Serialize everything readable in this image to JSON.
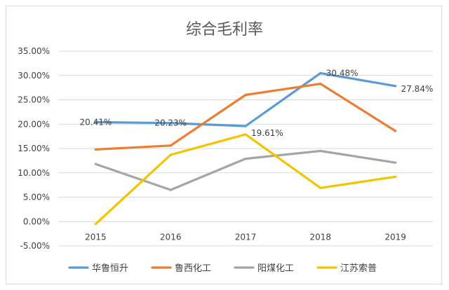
{
  "chart_data": {
    "type": "line",
    "title": "综合毛利率",
    "categories": [
      "2015",
      "2016",
      "2017",
      "2018",
      "2019"
    ],
    "yticks": [
      "35.00%",
      "30.00%",
      "25.00%",
      "20.00%",
      "15.00%",
      "10.00%",
      "5.00%",
      "0.00%",
      "-5.00%"
    ],
    "ylim": [
      -5,
      35
    ],
    "grid": true,
    "legend_position": "bottom",
    "series": [
      {
        "name": "华鲁恒升",
        "color": "#5b9bd5",
        "values": [
          20.41,
          20.23,
          19.61,
          30.48,
          27.84
        ],
        "data_labels": [
          "20.41%",
          "20.23%",
          "19.61%",
          "30.48%",
          "27.84%"
        ]
      },
      {
        "name": "鲁西化工",
        "color": "#ed7d31",
        "values": [
          14.8,
          15.6,
          26.0,
          28.3,
          18.6
        ]
      },
      {
        "name": "阳煤化工",
        "color": "#a5a5a5",
        "values": [
          11.8,
          6.5,
          12.9,
          14.5,
          12.1
        ]
      },
      {
        "name": "江苏索普",
        "color": "#f2c500",
        "values": [
          -0.5,
          13.7,
          17.9,
          6.9,
          9.2
        ]
      }
    ]
  }
}
